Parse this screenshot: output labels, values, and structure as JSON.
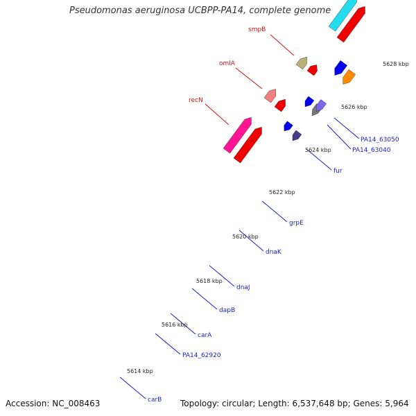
{
  "title": "Pseudomonas aeruginosa UCBPP-PA14, complete genome",
  "footer": {
    "accession": "Accession: NC_008463",
    "summary": "Topology: circular; Length: 6,537,648 bp; Genes: 5,964"
  },
  "colors": {
    "backbone": "#8c8c8c",
    "tick": "#1f8a1f",
    "label_red": "#cc1111",
    "label_blue": "#1a1acc",
    "blue": "#0000ee",
    "khaki": "#b8b27a",
    "steel": "#4a82b8",
    "cyan": "#22ddee",
    "red": "#ee0000",
    "pink": "#ff1493",
    "salmon": "#f08080",
    "orange": "#ff8c00",
    "slate": "#7b68ee",
    "navy": "#483d8b",
    "gray": "#777777"
  },
  "scale_labels": [
    "5614 kbp",
    "5616 kbp",
    "5618 kbp",
    "5620 kbp",
    "5622 kbp",
    "5624 kbp",
    "5626 kbp",
    "5628 kbp"
  ],
  "gene_labels": {
    "forward": [
      "smpB",
      "omlA",
      "recN"
    ],
    "reverse": [
      "PA14_63050",
      "PA14_63040",
      "fur",
      "grpE",
      "dnaK",
      "dnaJ",
      "dapB",
      "carA",
      "PA14_62920",
      "carB"
    ]
  }
}
